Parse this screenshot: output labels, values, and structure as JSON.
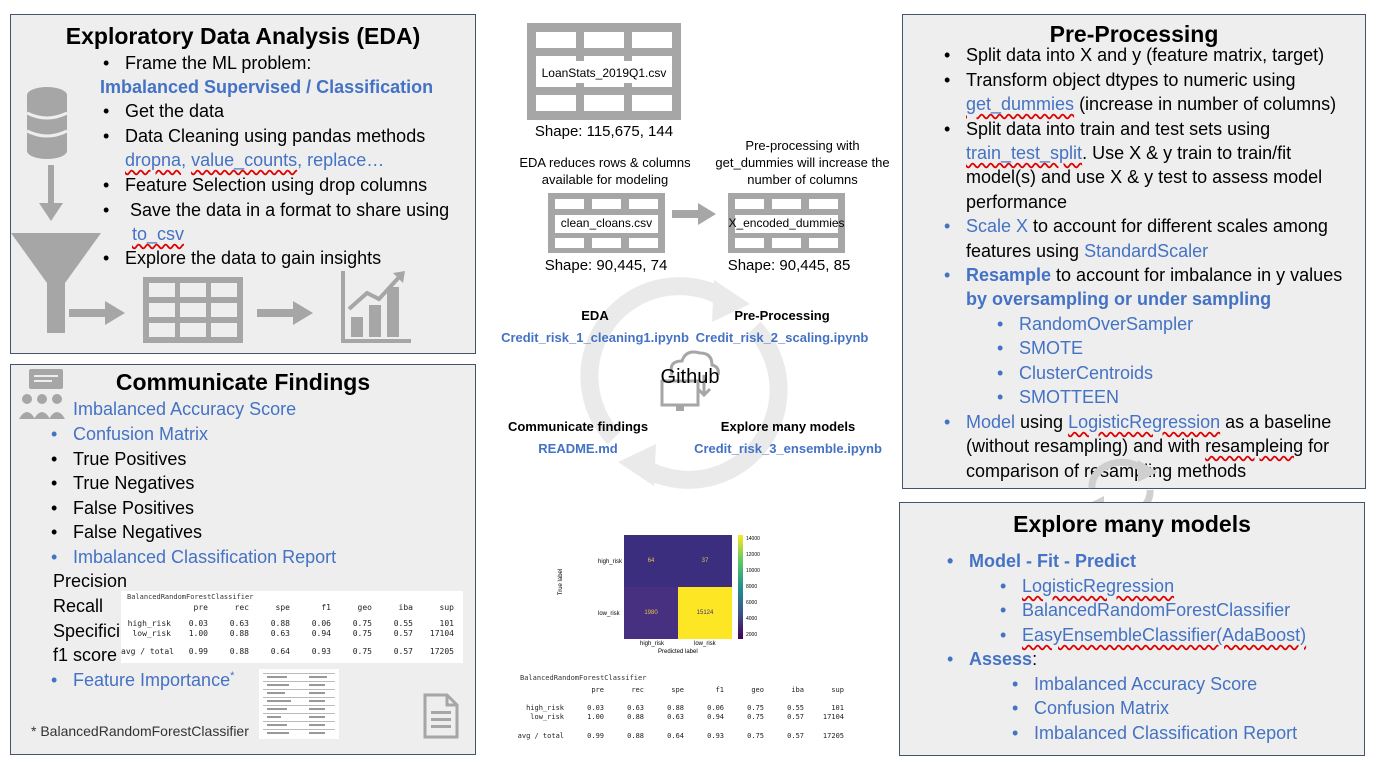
{
  "eda": {
    "title": "Exploratory Data Analysis (EDA)",
    "items": [
      "Frame the ML problem:",
      "Get the data",
      "Data Cleaning using pandas methods",
      "Feature Selection using drop columns",
      " Save the data in a format to share using",
      "Explore the data to gain insights"
    ],
    "problem": "Imbalanced Supervised / Classification",
    "cleaning_methods": [
      "dropna",
      "value_counts",
      "replace…"
    ],
    "save_method": "to_csv"
  },
  "center": {
    "raw_file": "LoanStats_2019Q1.csv",
    "raw_shape": "Shape: 115,675, 144",
    "eda_note": "EDA reduces rows &  columns available for modeling",
    "clean_file": "clean_cloans.csv",
    "clean_shape": "Shape: 90,445, 74",
    "pre_note": "Pre-processing with get_dummies will increase the number of columns",
    "encoded_file": "X_encoded_dummies",
    "encoded_shape": "Shape: 90,445, 85",
    "hub_label": "Github",
    "nodes": [
      {
        "label": "EDA",
        "file": "Credit_risk_1_cleaning1.ipynb"
      },
      {
        "label": "Pre-Processing",
        "file": "Credit_risk_2_scaling.ipynb"
      },
      {
        "label": "Communicate findings",
        "file": "README.md"
      },
      {
        "label": "Explore many models",
        "file": "Credit_risk_3_ensemble.ipynb"
      }
    ]
  },
  "confusion": {
    "ylabel": "True label",
    "xlabel": "Predicted label",
    "row_labels": [
      "high_risk",
      "low_risk"
    ],
    "col_labels": [
      "high_risk",
      "low_risk"
    ],
    "cells": [
      [
        "64",
        "37"
      ],
      [
        "1980",
        "15124"
      ]
    ],
    "colorbar_ticks": [
      "14000",
      "12000",
      "10000",
      "8000",
      "6000",
      "4000",
      "2000"
    ]
  },
  "report": {
    "title": "BalancedRandomForestClassifier",
    "header": [
      "pre",
      "rec",
      "spe",
      "f1",
      "geo",
      "iba",
      "sup"
    ],
    "rows": [
      {
        "name": "high_risk",
        "vals": [
          "0.03",
          "0.63",
          "0.88",
          "0.06",
          "0.75",
          "0.55",
          "101"
        ]
      },
      {
        "name": "low_risk",
        "vals": [
          "1.00",
          "0.88",
          "0.63",
          "0.94",
          "0.75",
          "0.57",
          "17104"
        ]
      },
      {
        "name": "avg / total",
        "vals": [
          "0.99",
          "0.88",
          "0.64",
          "0.93",
          "0.75",
          "0.57",
          "17205"
        ]
      }
    ]
  },
  "report_small": {
    "rows": [
      {
        "name": "high_risk",
        "vals": [
          "0.03",
          "0.63",
          "0.88",
          "0.06",
          "0.75",
          "0.55",
          "101"
        ]
      },
      {
        "name": "low_risk",
        "vals": [
          "1.00",
          "0.88",
          "0.63",
          "0.94",
          "0.75",
          "0.57",
          "17104"
        ]
      },
      {
        "name": "avg / total",
        "vals": [
          "0.99",
          "0.88",
          "0.64",
          "0.93",
          "0.75",
          "0.57",
          "17205"
        ]
      }
    ]
  },
  "comm": {
    "title": "Communicate Findings",
    "items": [
      "Imbalanced Accuracy Score",
      "Confusion Matrix",
      "True Positives",
      "True Negatives",
      "False Positives",
      "False Negatives",
      "Imbalanced Classification Report"
    ],
    "metrics": [
      "Precision",
      "Recall",
      "Specifici",
      "f1 score"
    ],
    "feature_importance": "Feature Importance",
    "footnote_mark": "*",
    "footnote": "* BalancedRandomForestClassifier"
  },
  "pre": {
    "title": "Pre-Processing",
    "items": [
      [
        "Split data into X and y (feature matrix, target)"
      ],
      [
        "Transform object dtypes to numeric using",
        "get_dummies",
        " (increase in number of columns)"
      ],
      [
        "Split data into train and test sets using",
        "train_test_split",
        ". Use X & y train to train/fit",
        "model(s) and use X & y test to assess model",
        "performance"
      ],
      [
        "Scale X",
        " to account for different scales among",
        "features using ",
        "StandardScaler"
      ],
      [
        "Resample",
        " to account for imbalance in y values",
        "by oversampling or under sampling"
      ],
      [
        "Model",
        " using ",
        "LogisticRegression",
        " as a baseline",
        "(without resampling) and with ",
        "resampleing",
        " for",
        "comparison of resampling methods"
      ]
    ],
    "sub": [
      "RandomOverSampler",
      "SMOTE",
      "ClusterCentroids",
      "SMOTTEEN"
    ]
  },
  "explore": {
    "title": "Explore many models",
    "fit": "Model - Fit - Predict",
    "models": [
      "LogisticRegression",
      "BalancedRandomForestClassifier",
      "EasyEnsembleClassifier(AdaBoost)"
    ],
    "assess": "Assess",
    "assess_colon": ":",
    "metrics": [
      "Imbalanced Accuracy Score",
      "Confusion Matrix",
      "Imbalanced Classification Report"
    ]
  },
  "colors": {
    "panel_bg": "#eeeeee",
    "border": "#44546a",
    "accent": "#4472c4",
    "icon_gray": "#a6a6a6",
    "cm_dark": "#3b2e7e",
    "cm_yellow": "#fde725"
  }
}
